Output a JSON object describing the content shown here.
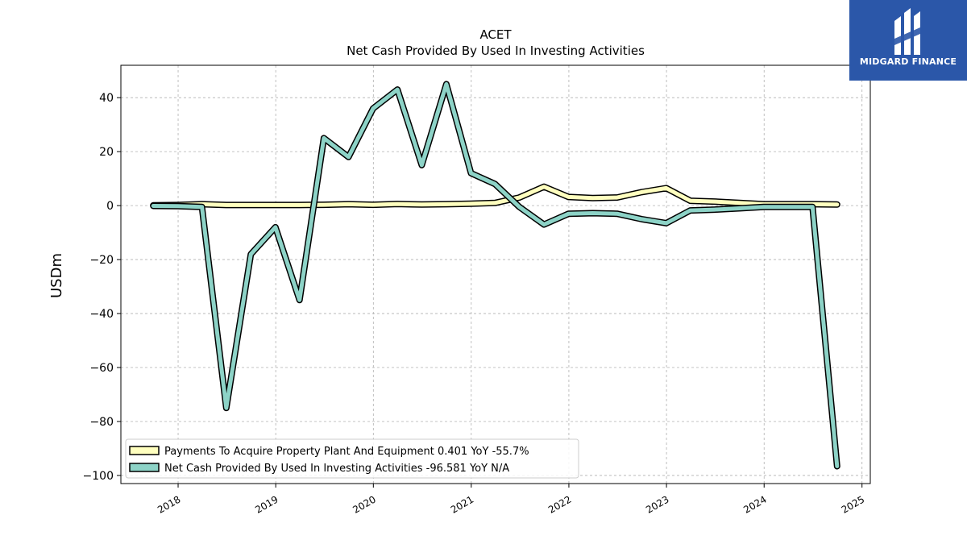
{
  "chart_data": {
    "type": "line",
    "title": "ACET",
    "subtitle": "Net Cash Provided By Used In Investing Activities",
    "xlabel": "",
    "ylabel": "USDm",
    "ylim": [
      -103,
      52
    ],
    "xlim": [
      "2017-06-01",
      "2025-02-01"
    ],
    "yticks": [
      -100,
      -80,
      -60,
      -40,
      -20,
      0,
      20,
      40
    ],
    "ytick_labels": [
      "−100",
      "−80",
      "−60",
      "−40",
      "−20",
      "0",
      "20",
      "40"
    ],
    "xticks": [
      "2018-01-01",
      "2019-01-01",
      "2020-01-01",
      "2021-01-01",
      "2022-01-01",
      "2023-01-01",
      "2024-01-01",
      "2025-01-01"
    ],
    "xtick_labels": [
      "2018",
      "2019",
      "2020",
      "2021",
      "2022",
      "2023",
      "2024",
      "2025"
    ],
    "grid": true,
    "legend_position": "lower-left",
    "series": [
      {
        "name": "Payments To Acquire Property Plant And Equipment  0.401 YoY -55.7%",
        "color": "#ffffbf",
        "x": [
          "2017-09-30",
          "2017-12-31",
          "2018-03-31",
          "2018-06-30",
          "2018-09-30",
          "2018-12-31",
          "2019-03-31",
          "2019-06-30",
          "2019-09-30",
          "2019-12-31",
          "2020-03-31",
          "2020-06-30",
          "2020-09-30",
          "2020-12-31",
          "2021-03-31",
          "2021-06-30",
          "2021-09-30",
          "2021-12-31",
          "2022-03-31",
          "2022-06-30",
          "2022-09-30",
          "2022-12-31",
          "2023-03-31",
          "2023-06-30",
          "2023-09-30",
          "2023-12-31",
          "2024-03-31",
          "2024-06-30",
          "2024-09-30"
        ],
        "values": [
          0.1,
          0.2,
          0.5,
          0.2,
          0.2,
          0.2,
          0.2,
          0.3,
          0.5,
          0.3,
          0.6,
          0.4,
          0.5,
          0.7,
          1.0,
          3.0,
          7.0,
          3.2,
          2.8,
          3.0,
          5.0,
          6.5,
          1.8,
          1.5,
          1.0,
          0.5,
          0.5,
          0.5,
          0.401
        ]
      },
      {
        "name": "Net Cash Provided By Used In Investing Activities  -96.581 YoY N/A",
        "color": "#8dd3c7",
        "x": [
          "2017-09-30",
          "2017-12-31",
          "2018-03-31",
          "2018-06-30",
          "2018-09-30",
          "2018-12-31",
          "2019-03-31",
          "2019-06-30",
          "2019-09-30",
          "2019-12-31",
          "2020-03-31",
          "2020-06-30",
          "2020-09-30",
          "2020-12-31",
          "2021-03-31",
          "2021-06-30",
          "2021-09-30",
          "2021-12-31",
          "2022-03-31",
          "2022-06-30",
          "2022-09-30",
          "2022-12-31",
          "2023-03-31",
          "2023-06-30",
          "2023-09-30",
          "2023-12-31",
          "2024-03-31",
          "2024-06-30",
          "2024-09-30"
        ],
        "values": [
          -0.1,
          -0.2,
          -0.5,
          -75,
          -18,
          -8,
          -35,
          25,
          18,
          36,
          43,
          15,
          45,
          12,
          8,
          -0.5,
          -7,
          -3,
          -2.8,
          -3,
          -5,
          -6.5,
          -1.8,
          -1.5,
          -1.0,
          -0.5,
          -0.5,
          -0.5,
          -96.581
        ]
      }
    ]
  },
  "logo": {
    "text": "MIDGARD FINANCE"
  }
}
